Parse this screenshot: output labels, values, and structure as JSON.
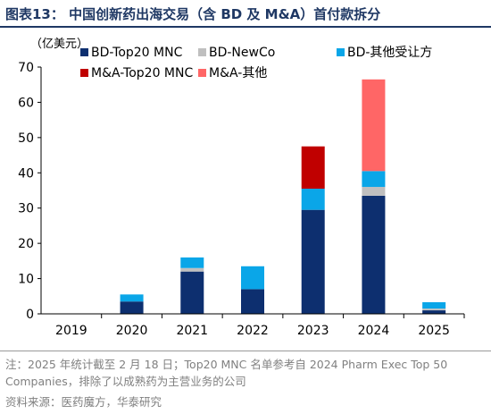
{
  "title": "图表13：  中国创新药出海交易（含 BD 及 M&A）首付款拆分",
  "unit": "（亿美元）",
  "note": "注：2025 年统计截至 2 月 18 日；Top20 MNC 名单参考自 2024 Pharm Exec Top 50 Companies，排除了以成熟药为主营业务的公司",
  "source": "资料来源：医药魔方，华泰研究",
  "colors": {
    "bd_top20": "#0d2f6f",
    "bd_newco": "#bfbfbf",
    "bd_other": "#0aa6e8",
    "ma_top20": "#c00000",
    "ma_other": "#ff6666"
  },
  "chart_data": {
    "type": "bar",
    "stacked": true,
    "categories": [
      "2019",
      "2020",
      "2021",
      "2022",
      "2023",
      "2024",
      "2025"
    ],
    "ylim": [
      0,
      70
    ],
    "yticks": [
      0,
      10,
      20,
      30,
      40,
      50,
      60,
      70
    ],
    "ylabel": "",
    "xlabel": "",
    "legend_position": "top",
    "series": [
      {
        "name": "BD-Top20 MNC",
        "color": "#0d2f6f",
        "values": [
          0,
          3.5,
          12,
          7,
          29.5,
          33.5,
          1
        ]
      },
      {
        "name": "BD-NewCo",
        "color": "#bfbfbf",
        "values": [
          0,
          0,
          1,
          0,
          0,
          2.5,
          0.5
        ]
      },
      {
        "name": "BD-其他受让方",
        "color": "#0aa6e8",
        "values": [
          0,
          2,
          3,
          6.5,
          6,
          4.5,
          1.8
        ]
      },
      {
        "name": "M&A-Top20 MNC",
        "color": "#c00000",
        "values": [
          0,
          0,
          0,
          0,
          12,
          0,
          0
        ]
      },
      {
        "name": "M&A-其他",
        "color": "#ff6666",
        "values": [
          0,
          0,
          0,
          0,
          0,
          26,
          0
        ]
      }
    ]
  }
}
